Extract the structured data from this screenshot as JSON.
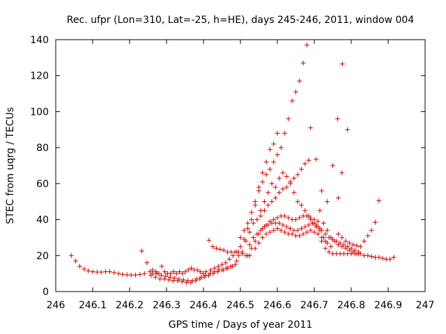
{
  "chart_data": {
    "type": "scatter",
    "title": "Rec. ufpr (Lon=310, Lat=-25, h=HE), days 245-246, 2011, window 004",
    "xlabel": "GPS time / Days of year 2011",
    "ylabel": "STEC from uqrg / TECUs",
    "xlim": [
      246,
      247
    ],
    "ylim": [
      0,
      140
    ],
    "xticks": [
      "246",
      "246.1",
      "246.2",
      "246.3",
      "246.4",
      "246.5",
      "246.6",
      "246.7",
      "246.8",
      "246.9",
      "247"
    ],
    "yticks": [
      "0",
      "20",
      "40",
      "60",
      "80",
      "100",
      "120",
      "140"
    ],
    "grid": false,
    "legend": false,
    "marker": "plus",
    "color": "#cc0000",
    "points": [
      [
        246.042,
        20
      ],
      [
        246.054,
        17
      ],
      [
        246.065,
        14
      ],
      [
        246.077,
        12.5
      ],
      [
        246.088,
        11.5
      ],
      [
        246.1,
        11
      ],
      [
        246.112,
        10.8
      ],
      [
        246.123,
        10.8
      ],
      [
        246.135,
        11
      ],
      [
        246.146,
        11
      ],
      [
        246.158,
        10.5
      ],
      [
        246.17,
        10
      ],
      [
        246.181,
        9.5
      ],
      [
        246.193,
        9.3
      ],
      [
        246.204,
        9.2
      ],
      [
        246.216,
        9.2
      ],
      [
        246.228,
        9.5
      ],
      [
        246.24,
        10
      ],
      [
        246.233,
        22.5
      ],
      [
        246.247,
        16
      ],
      [
        246.255,
        11
      ],
      [
        246.263,
        10
      ],
      [
        246.271,
        11
      ],
      [
        246.279,
        10
      ],
      [
        246.287,
        14
      ],
      [
        246.295,
        11
      ],
      [
        246.303,
        10
      ],
      [
        246.311,
        10
      ],
      [
        246.319,
        11
      ],
      [
        246.327,
        10
      ],
      [
        246.335,
        11
      ],
      [
        246.343,
        10
      ],
      [
        246.351,
        11
      ],
      [
        246.359,
        12
      ],
      [
        246.367,
        13
      ],
      [
        246.375,
        12
      ],
      [
        246.383,
        12
      ],
      [
        246.391,
        11
      ],
      [
        246.399,
        10
      ],
      [
        246.407,
        11
      ],
      [
        246.258,
        9
      ],
      [
        246.27,
        8
      ],
      [
        246.282,
        7
      ],
      [
        246.294,
        7
      ],
      [
        246.306,
        6.5
      ],
      [
        246.318,
        6
      ],
      [
        246.33,
        6
      ],
      [
        246.342,
        5.5
      ],
      [
        246.354,
        5
      ],
      [
        246.366,
        5
      ],
      [
        246.378,
        6
      ],
      [
        246.39,
        7
      ],
      [
        246.402,
        8
      ],
      [
        246.414,
        9
      ],
      [
        246.426,
        10
      ],
      [
        246.438,
        11
      ],
      [
        246.45,
        12
      ],
      [
        246.462,
        13
      ],
      [
        246.474,
        14
      ],
      [
        246.486,
        15
      ],
      [
        246.262,
        12
      ],
      [
        246.274,
        10
      ],
      [
        246.286,
        9
      ],
      [
        246.298,
        8.5
      ],
      [
        246.31,
        8
      ],
      [
        246.322,
        7.5
      ],
      [
        246.334,
        7
      ],
      [
        246.346,
        6.5
      ],
      [
        246.358,
        6
      ],
      [
        246.37,
        6
      ],
      [
        246.382,
        7
      ],
      [
        246.394,
        8
      ],
      [
        246.406,
        9
      ],
      [
        246.418,
        10
      ],
      [
        246.43,
        11
      ],
      [
        246.442,
        12
      ],
      [
        246.454,
        12
      ],
      [
        246.466,
        13
      ],
      [
        246.478,
        14
      ],
      [
        246.49,
        17
      ],
      [
        246.415,
        28.5
      ],
      [
        246.425,
        25
      ],
      [
        246.435,
        24
      ],
      [
        246.445,
        23.5
      ],
      [
        246.455,
        23
      ],
      [
        246.465,
        22
      ],
      [
        246.475,
        22
      ],
      [
        246.485,
        22
      ],
      [
        246.495,
        22
      ],
      [
        246.505,
        21
      ],
      [
        246.515,
        20
      ],
      [
        246.525,
        20
      ],
      [
        246.42,
        12
      ],
      [
        246.43,
        13
      ],
      [
        246.44,
        14
      ],
      [
        246.45,
        15
      ],
      [
        246.46,
        16
      ],
      [
        246.47,
        18
      ],
      [
        246.48,
        20
      ],
      [
        246.49,
        22
      ],
      [
        246.5,
        25
      ],
      [
        246.51,
        29
      ],
      [
        246.52,
        35
      ],
      [
        246.53,
        40
      ],
      [
        246.54,
        48
      ],
      [
        246.55,
        58
      ],
      [
        246.56,
        66
      ],
      [
        246.57,
        72
      ],
      [
        246.58,
        79
      ],
      [
        246.59,
        82
      ],
      [
        246.6,
        88
      ],
      [
        246.5,
        30
      ],
      [
        246.51,
        34
      ],
      [
        246.52,
        38
      ],
      [
        246.53,
        44
      ],
      [
        246.54,
        50
      ],
      [
        246.55,
        56
      ],
      [
        246.56,
        61
      ],
      [
        246.57,
        65
      ],
      [
        246.58,
        68
      ],
      [
        246.59,
        72
      ],
      [
        246.6,
        76
      ],
      [
        246.61,
        80
      ],
      [
        246.62,
        88
      ],
      [
        246.63,
        96
      ],
      [
        246.64,
        106
      ],
      [
        246.65,
        111
      ],
      [
        246.66,
        117
      ],
      [
        246.67,
        127
      ],
      [
        246.68,
        137
      ],
      [
        246.495,
        20
      ],
      [
        246.505,
        22
      ],
      [
        246.515,
        28
      ],
      [
        246.525,
        33
      ],
      [
        246.535,
        38
      ],
      [
        246.545,
        40
      ],
      [
        246.555,
        42
      ],
      [
        246.565,
        45
      ],
      [
        246.575,
        48
      ],
      [
        246.585,
        50
      ],
      [
        246.595,
        52
      ],
      [
        246.605,
        55
      ],
      [
        246.615,
        57
      ],
      [
        246.625,
        58
      ],
      [
        246.635,
        60
      ],
      [
        246.645,
        63
      ],
      [
        246.655,
        65
      ],
      [
        246.665,
        68
      ],
      [
        246.675,
        71
      ],
      [
        246.685,
        73
      ],
      [
        246.52,
        20
      ],
      [
        246.53,
        24
      ],
      [
        246.54,
        28
      ],
      [
        246.55,
        32
      ],
      [
        246.56,
        35
      ],
      [
        246.57,
        37
      ],
      [
        246.58,
        39
      ],
      [
        246.59,
        40
      ],
      [
        246.6,
        41
      ],
      [
        246.61,
        42
      ],
      [
        246.62,
        42
      ],
      [
        246.63,
        41
      ],
      [
        246.64,
        40
      ],
      [
        246.65,
        40
      ],
      [
        246.66,
        41
      ],
      [
        246.67,
        42
      ],
      [
        246.68,
        42
      ],
      [
        246.69,
        41
      ],
      [
        246.7,
        40
      ],
      [
        246.71,
        39
      ],
      [
        246.525,
        26
      ],
      [
        246.535,
        30
      ],
      [
        246.545,
        32
      ],
      [
        246.555,
        34
      ],
      [
        246.565,
        36
      ],
      [
        246.575,
        37
      ],
      [
        246.585,
        38
      ],
      [
        246.595,
        38
      ],
      [
        246.605,
        38
      ],
      [
        246.615,
        37
      ],
      [
        246.625,
        36
      ],
      [
        246.635,
        35
      ],
      [
        246.645,
        34
      ],
      [
        246.655,
        34
      ],
      [
        246.665,
        35
      ],
      [
        246.675,
        36
      ],
      [
        246.685,
        37
      ],
      [
        246.695,
        38
      ],
      [
        246.705,
        37
      ],
      [
        246.715,
        35
      ],
      [
        246.54,
        24
      ],
      [
        246.55,
        27
      ],
      [
        246.56,
        30
      ],
      [
        246.57,
        32
      ],
      [
        246.58,
        33
      ],
      [
        246.59,
        34
      ],
      [
        246.6,
        35
      ],
      [
        246.61,
        34
      ],
      [
        246.62,
        33
      ],
      [
        246.63,
        32
      ],
      [
        246.64,
        32
      ],
      [
        246.65,
        31
      ],
      [
        246.66,
        31
      ],
      [
        246.67,
        32
      ],
      [
        246.68,
        33
      ],
      [
        246.69,
        34
      ],
      [
        246.7,
        33
      ],
      [
        246.71,
        32
      ],
      [
        246.72,
        30
      ],
      [
        246.73,
        28
      ],
      [
        246.555,
        45
      ],
      [
        246.565,
        50
      ],
      [
        246.575,
        55
      ],
      [
        246.585,
        60
      ],
      [
        246.595,
        58
      ],
      [
        246.605,
        63
      ],
      [
        246.615,
        66
      ],
      [
        246.625,
        64
      ],
      [
        246.635,
        61
      ],
      [
        246.645,
        55
      ],
      [
        246.655,
        50
      ],
      [
        246.665,
        48
      ],
      [
        246.675,
        45
      ],
      [
        246.685,
        42
      ],
      [
        246.695,
        38
      ],
      [
        246.705,
        36
      ],
      [
        246.715,
        34
      ],
      [
        246.725,
        30
      ],
      [
        246.735,
        27
      ],
      [
        246.745,
        25
      ],
      [
        246.69,
        91
      ],
      [
        246.705,
        73.5
      ],
      [
        246.72,
        56
      ],
      [
        246.735,
        50
      ],
      [
        246.75,
        70
      ],
      [
        246.765,
        52
      ],
      [
        246.775,
        66
      ],
      [
        246.763,
        96
      ],
      [
        246.776,
        126.5
      ],
      [
        246.79,
        90
      ],
      [
        246.715,
        45
      ],
      [
        246.725,
        38
      ],
      [
        246.735,
        34
      ],
      [
        246.745,
        30
      ],
      [
        246.755,
        28
      ],
      [
        246.765,
        26
      ],
      [
        246.775,
        25
      ],
      [
        246.785,
        24
      ],
      [
        246.795,
        23
      ],
      [
        246.805,
        22
      ],
      [
        246.815,
        21
      ],
      [
        246.825,
        21
      ],
      [
        246.835,
        20
      ],
      [
        246.845,
        20
      ],
      [
        246.855,
        19.5
      ],
      [
        246.865,
        19
      ],
      [
        246.875,
        19
      ],
      [
        246.885,
        18.5
      ],
      [
        246.895,
        18
      ],
      [
        246.905,
        18
      ],
      [
        246.915,
        19
      ],
      [
        246.72,
        28
      ],
      [
        246.73,
        24
      ],
      [
        246.74,
        22
      ],
      [
        246.75,
        21
      ],
      [
        246.76,
        21
      ],
      [
        246.77,
        21
      ],
      [
        246.78,
        21
      ],
      [
        246.79,
        21
      ],
      [
        246.8,
        21
      ],
      [
        246.81,
        21
      ],
      [
        246.82,
        21
      ],
      [
        246.765,
        32
      ],
      [
        246.775,
        30
      ],
      [
        246.785,
        28
      ],
      [
        246.795,
        27
      ],
      [
        246.805,
        26
      ],
      [
        246.815,
        25.5
      ],
      [
        246.825,
        25
      ],
      [
        246.835,
        28
      ],
      [
        246.845,
        31
      ],
      [
        246.855,
        34
      ],
      [
        246.865,
        38.5
      ],
      [
        246.875,
        50.5
      ],
      [
        246.69,
        40
      ],
      [
        246.7,
        38
      ],
      [
        246.71,
        36
      ],
      [
        246.72,
        34
      ],
      [
        246.73,
        32
      ],
      [
        246.74,
        30
      ],
      [
        246.75,
        29
      ],
      [
        246.76,
        28
      ],
      [
        246.77,
        27
      ],
      [
        246.78,
        26
      ],
      [
        246.79,
        25
      ],
      [
        246.8,
        24
      ],
      [
        246.81,
        23
      ],
      [
        246.82,
        22
      ]
    ]
  }
}
